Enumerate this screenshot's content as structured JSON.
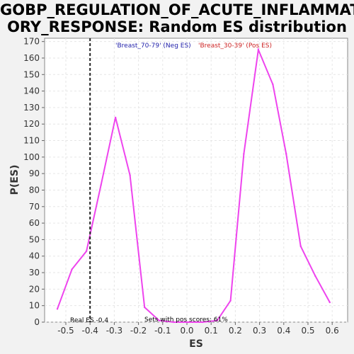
{
  "chart_data": {
    "type": "line",
    "title_line1": "GOBP_REGULATION_OF_ACUTE_INFLAMMAT",
    "title_line2": "ORY_RESPONSE: Random ES distribution",
    "xlabel": "ES",
    "ylabel": "P(ES)",
    "xlim": [
      -0.6,
      0.65
    ],
    "ylim": [
      0,
      172
    ],
    "xticks": [
      -0.5,
      -0.4,
      -0.3,
      -0.2,
      -0.1,
      0.0,
      0.1,
      0.2,
      0.3,
      0.4,
      0.5,
      0.6
    ],
    "xtick_labels": [
      "-0.5",
      "-0.4",
      "-0.3",
      "-0.2",
      "-0.1",
      "0.0",
      "0.1",
      "0.2",
      "0.3",
      "0.4",
      "0.5",
      "0.6"
    ],
    "yticks": [
      0,
      10,
      20,
      30,
      40,
      50,
      60,
      70,
      80,
      90,
      100,
      110,
      120,
      130,
      140,
      150,
      160,
      170
    ],
    "grid": true,
    "series": [
      {
        "color": "#ee44ee",
        "x": [
          -0.535,
          -0.475,
          -0.415,
          -0.355,
          -0.295,
          -0.235,
          -0.175,
          -0.115,
          -0.055,
          0.005,
          0.065,
          0.125,
          0.18,
          0.235,
          0.295,
          0.355,
          0.41,
          0.47,
          0.53,
          0.59
        ],
        "y": [
          8,
          32,
          43,
          83,
          124,
          89,
          9,
          1,
          0,
          0,
          0,
          1,
          13,
          102,
          165,
          144,
          102,
          46,
          28,
          12
        ]
      }
    ],
    "real_es": {
      "x": -0.4,
      "label": "Real ES -0.4"
    },
    "legend": {
      "neg_label": "'Breast_70-79' (Neg ES)",
      "neg_color": "#2222aa",
      "pos_label": "'Breast_30-39' (Pos ES)",
      "pos_color": "#cc2222"
    },
    "annotation": "Sets with pos scores: 61%"
  }
}
